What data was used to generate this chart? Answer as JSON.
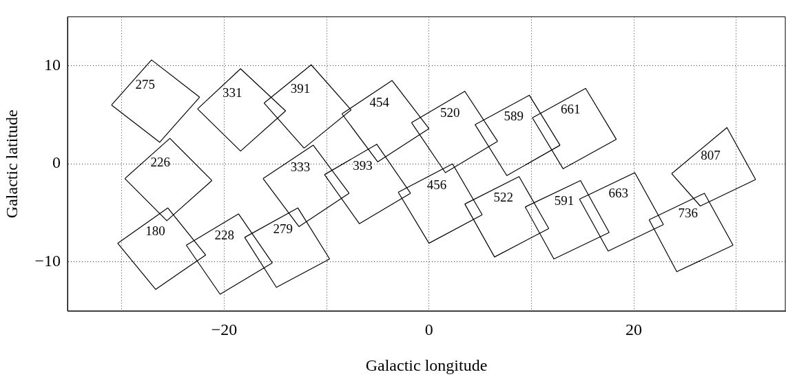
{
  "chart_data": {
    "type": "line",
    "xlabel": "Galactic longitude",
    "ylabel": "Galactic latitude",
    "xlim": [
      -35.3,
      34.8
    ],
    "ylim": [
      -15,
      15
    ],
    "xticks": [
      {
        "value": -30,
        "label": null
      },
      {
        "value": -20,
        "label": "−20"
      },
      {
        "value": -10,
        "label": null
      },
      0,
      {
        "value": 10,
        "label": null
      },
      20,
      {
        "value": 30,
        "label": null
      }
    ],
    "yticks": [
      {
        "value": -10,
        "label": "−10"
      },
      0,
      10
    ],
    "grid": true,
    "legend": false,
    "marker": "none",
    "line_style": "solid",
    "series": [
      {
        "name": "275",
        "color": "#000000",
        "x": [
          -31.0,
          -27.1,
          -22.4
        ],
        "values": [
          6.0,
          10.6,
          6.8
        ]
      },
      {
        "color": "#000000",
        "x": [
          -31.0,
          -26.3,
          -22.4
        ],
        "values": [
          6.0,
          2.2,
          6.8
        ]
      },
      {
        "name": "331",
        "color": "#000000",
        "x": [
          -22.6,
          -18.4,
          -14.0
        ],
        "values": [
          5.6,
          9.7,
          5.4
        ]
      },
      {
        "color": "#000000",
        "x": [
          -22.6,
          -18.4,
          -14.0
        ],
        "values": [
          5.6,
          1.3,
          5.4
        ]
      },
      {
        "name": "391",
        "color": "#000000",
        "x": [
          -16.1,
          -11.5,
          -7.6
        ],
        "values": [
          6.2,
          10.1,
          5.5
        ]
      },
      {
        "color": "#000000",
        "x": [
          -16.1,
          -12.2,
          -7.6
        ],
        "values": [
          6.2,
          1.6,
          5.5
        ]
      },
      {
        "name": "454",
        "color": "#000000",
        "x": [
          -8.5,
          -3.6,
          0
        ],
        "values": [
          5.1,
          8.5,
          3.6
        ]
      },
      {
        "color": "#000000",
        "x": [
          -8.5,
          -5.0,
          0
        ],
        "values": [
          5.1,
          0.2,
          3.6
        ]
      },
      {
        "name": "226",
        "color": "#000000",
        "x": [
          -29.7,
          -25.3,
          -21.2
        ],
        "values": [
          -1.5,
          2.6,
          -1.7
        ]
      },
      {
        "color": "#000000",
        "x": [
          -29.7,
          -25.6,
          -21.2
        ],
        "values": [
          -1.5,
          -5.8,
          -1.7
        ]
      },
      {
        "name": "180",
        "color": "#000000",
        "x": [
          -30.4,
          -25.5,
          -21.8
        ],
        "values": [
          -8.1,
          -4.5,
          -9.3
        ]
      },
      {
        "color": "#000000",
        "x": [
          -30.4,
          -26.7,
          -21.8
        ],
        "values": [
          -8.1,
          -12.8,
          -9.3
        ]
      },
      {
        "name": "228",
        "color": "#000000",
        "x": [
          -23.7,
          -18.6,
          -15.3
        ],
        "values": [
          -8.3,
          -5.1,
          -10.1
        ]
      },
      {
        "color": "#000000",
        "x": [
          -23.7,
          -20.4,
          -15.3
        ],
        "values": [
          -8.3,
          -13.3,
          -10.1
        ]
      },
      {
        "name": "279",
        "color": "#000000",
        "x": [
          -18.0,
          -12.8,
          -9.7
        ],
        "values": [
          -7.5,
          -4.5,
          -9.7
        ]
      },
      {
        "color": "#000000",
        "x": [
          -18.0,
          -14.9,
          -9.7
        ],
        "values": [
          -7.5,
          -12.6,
          -9.7
        ]
      },
      {
        "name": "333",
        "color": "#000000",
        "x": [
          -16.2,
          -11.3,
          -7.8
        ],
        "values": [
          -1.5,
          1.9,
          -3.0
        ]
      },
      {
        "color": "#000000",
        "x": [
          -16.2,
          -12.7,
          -7.8
        ],
        "values": [
          -1.5,
          -6.4,
          -3.0
        ]
      },
      {
        "name": "393",
        "color": "#000000",
        "x": [
          -10.2,
          -5.1,
          -1.8
        ],
        "values": [
          -1.1,
          2.0,
          -3.0
        ]
      },
      {
        "color": "#000000",
        "x": [
          -10.2,
          -6.8,
          -1.8
        ],
        "values": [
          -1.1,
          -6.1,
          -3.0
        ]
      },
      {
        "name": "520",
        "color": "#000000",
        "x": [
          -1.7,
          3.5,
          6.7
        ],
        "values": [
          4.2,
          7.4,
          2.3
        ]
      },
      {
        "color": "#000000",
        "x": [
          -1.7,
          1.6,
          6.7
        ],
        "values": [
          4.2,
          -0.9,
          2.3
        ]
      },
      {
        "name": "589",
        "color": "#000000",
        "x": [
          4.5,
          9.8,
          12.8
        ],
        "values": [
          4.0,
          7.0,
          1.9
        ]
      },
      {
        "color": "#000000",
        "x": [
          4.5,
          7.6,
          12.8
        ],
        "values": [
          4.0,
          -1.2,
          1.9
        ]
      },
      {
        "name": "661",
        "color": "#000000",
        "x": [
          10.1,
          15.3,
          18.3
        ],
        "values": [
          4.7,
          7.7,
          2.5
        ]
      },
      {
        "color": "#000000",
        "x": [
          10.1,
          13.1,
          18.3
        ],
        "values": [
          4.7,
          -0.5,
          2.5
        ]
      },
      {
        "name": "456",
        "color": "#000000",
        "x": [
          -3.0,
          2.3,
          5.2
        ],
        "values": [
          -2.9,
          0,
          -5.2
        ]
      },
      {
        "color": "#000000",
        "x": [
          -3.0,
          0,
          5.2
        ],
        "values": [
          -2.9,
          -8.1,
          -5.2
        ]
      },
      {
        "name": "522",
        "color": "#000000",
        "x": [
          3.5,
          8.8,
          11.7
        ],
        "values": [
          -4.1,
          -1.3,
          -6.6
        ]
      },
      {
        "color": "#000000",
        "x": [
          3.5,
          6.4,
          11.7
        ],
        "values": [
          -4.1,
          -9.5,
          -6.6
        ]
      },
      {
        "name": "591",
        "color": "#000000",
        "x": [
          9.4,
          14.8,
          17.6
        ],
        "values": [
          -4.4,
          -1.7,
          -7.0
        ]
      },
      {
        "color": "#000000",
        "x": [
          9.4,
          12.2,
          17.6
        ],
        "values": [
          -4.4,
          -9.7,
          -7.0
        ]
      },
      {
        "name": "663",
        "color": "#000000",
        "x": [
          14.7,
          20.1,
          22.9
        ],
        "values": [
          -3.6,
          -0.9,
          -6.2
        ]
      },
      {
        "color": "#000000",
        "x": [
          14.7,
          17.5,
          22.9
        ],
        "values": [
          -3.6,
          -8.9,
          -6.2
        ]
      },
      {
        "name": "736",
        "color": "#000000",
        "x": [
          21.5,
          26.9,
          29.7
        ],
        "values": [
          -5.7,
          -3.0,
          -8.3
        ]
      },
      {
        "color": "#000000",
        "x": [
          21.5,
          24.2,
          29.7
        ],
        "values": [
          -5.7,
          -11.0,
          -8.3
        ]
      },
      {
        "name": "807",
        "color": "#000000",
        "x": [
          23.7,
          29.1,
          31.9
        ],
        "values": [
          -1.0,
          3.7,
          -1.6
        ]
      },
      {
        "color": "#000000",
        "x": [
          23.7,
          26.5,
          31.9
        ],
        "values": [
          -1.0,
          -4.3,
          -1.6
        ]
      }
    ]
  }
}
